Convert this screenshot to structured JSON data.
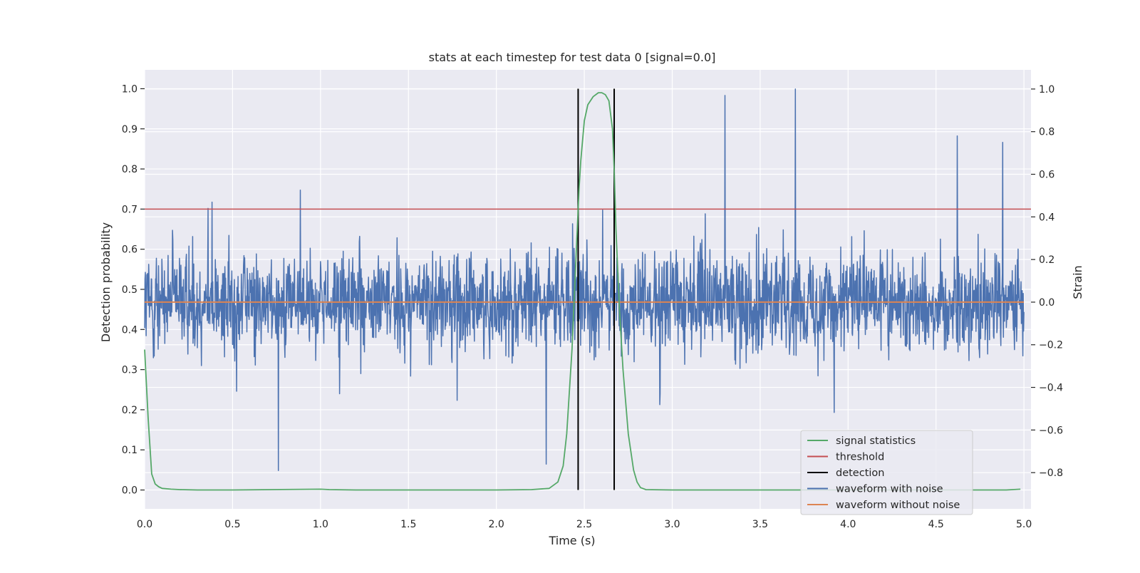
{
  "chart_data": {
    "type": "line",
    "title": "stats at each timestep for test data 0 [signal=0.0]",
    "xlabel": "Time (s)",
    "ylabel_left": "Detection probability",
    "ylabel_right": "Strain",
    "xlim": [
      0.0,
      5.04
    ],
    "ylim_left": [
      -0.047,
      1.047
    ],
    "ylim_right": [
      -0.97,
      1.09
    ],
    "x_ticks": [
      "0.0",
      "0.5",
      "1.0",
      "1.5",
      "2.0",
      "2.5",
      "3.0",
      "3.5",
      "4.0",
      "4.5",
      "5.0"
    ],
    "x_tick_values": [
      0.0,
      0.5,
      1.0,
      1.5,
      2.0,
      2.5,
      3.0,
      3.5,
      4.0,
      4.5,
      5.0
    ],
    "y_left_ticks": [
      "0.0",
      "0.1",
      "0.2",
      "0.3",
      "0.4",
      "0.5",
      "0.6",
      "0.7",
      "0.8",
      "0.9",
      "1.0"
    ],
    "y_left_tick_values": [
      0.0,
      0.1,
      0.2,
      0.3,
      0.4,
      0.5,
      0.6,
      0.7,
      0.8,
      0.9,
      1.0
    ],
    "y_right_ticks": [
      "−0.8",
      "−0.6",
      "−0.4",
      "−0.2",
      "0.0",
      "0.2",
      "0.4",
      "0.6",
      "0.8",
      "1.0"
    ],
    "y_right_tick_values": [
      -0.8,
      -0.6,
      -0.4,
      -0.2,
      0.0,
      0.2,
      0.4,
      0.6,
      0.8,
      1.0
    ],
    "grid": true,
    "legend_position": "lower-right",
    "series": [
      {
        "name": "signal statistics",
        "axis": "left",
        "color": "#55a868",
        "x": [
          0.0,
          0.02,
          0.04,
          0.06,
          0.08,
          0.1,
          0.15,
          0.2,
          0.3,
          0.5,
          1.0,
          1.05,
          1.2,
          1.5,
          2.0,
          2.2,
          2.3,
          2.35,
          2.38,
          2.4,
          2.43,
          2.45,
          2.47,
          2.48,
          2.5,
          2.52,
          2.55,
          2.58,
          2.6,
          2.62,
          2.64,
          2.66,
          2.67,
          2.68,
          2.7,
          2.72,
          2.75,
          2.78,
          2.8,
          2.82,
          2.85,
          3.0,
          3.5,
          4.0,
          4.5,
          4.9,
          4.98
        ],
        "values": [
          0.35,
          0.18,
          0.04,
          0.015,
          0.008,
          0.004,
          0.002,
          0.001,
          0.0,
          0.0,
          0.002,
          0.001,
          0.0,
          0.0,
          0.0,
          0.001,
          0.004,
          0.02,
          0.06,
          0.14,
          0.35,
          0.55,
          0.75,
          0.82,
          0.92,
          0.96,
          0.98,
          0.99,
          0.99,
          0.985,
          0.97,
          0.9,
          0.8,
          0.65,
          0.45,
          0.3,
          0.14,
          0.05,
          0.02,
          0.006,
          0.001,
          0.0,
          0.0,
          0.0,
          0.0,
          0.0,
          0.002
        ]
      },
      {
        "name": "threshold",
        "axis": "left",
        "color": "#c44e52",
        "x": [
          0.0,
          5.04
        ],
        "values": [
          0.7,
          0.7
        ]
      },
      {
        "name": "detection",
        "axis": "left",
        "color": "#000000",
        "type": "vlines",
        "x": [
          2.465,
          2.67
        ],
        "ymin": 0.0,
        "ymax": 1.0
      },
      {
        "name": "waveform with noise",
        "axis": "right",
        "color": "#4c72b0",
        "kind": "noise",
        "x_range": [
          0.0,
          5.0
        ],
        "approx_range": [
          -0.8,
          1.0
        ],
        "notable_peaks": [
          {
            "x": 0.76,
            "value": -0.79
          },
          {
            "x": 3.3,
            "value": 0.97
          },
          {
            "x": 3.7,
            "value": 1.0
          },
          {
            "x": 4.62,
            "value": 0.78
          },
          {
            "x": 4.88,
            "value": 0.75
          }
        ]
      },
      {
        "name": "waveform without noise",
        "axis": "right",
        "color": "#dd8452",
        "x": [
          0.0,
          5.0
        ],
        "values": [
          0.0,
          0.0
        ]
      }
    ]
  }
}
